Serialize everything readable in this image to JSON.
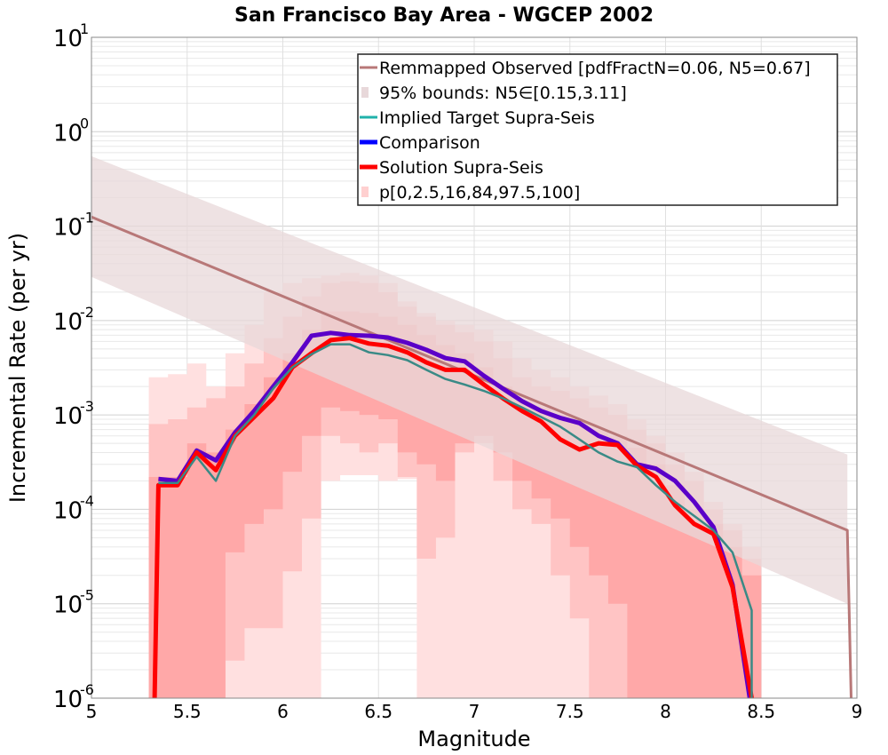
{
  "chart_data": {
    "type": "line",
    "title": "San Francisco Bay Area - WGCEP 2002",
    "xlabel": "Magnitude",
    "ylabel": "Incremental Rate (per yr)",
    "xlim": [
      5,
      9
    ],
    "ylim": [
      1e-06,
      10
    ],
    "yscale": "log",
    "grid": true,
    "legend_position": "top-right",
    "x_ticks": [
      "5",
      "5.5",
      "6",
      "6.5",
      "7",
      "7.5",
      "8",
      "8.5",
      "9"
    ],
    "y_ticks": [
      {
        "base": "10",
        "exp": "-6"
      },
      {
        "base": "10",
        "exp": "-5"
      },
      {
        "base": "10",
        "exp": "-4"
      },
      {
        "base": "10",
        "exp": "-3"
      },
      {
        "base": "10",
        "exp": "-2"
      },
      {
        "base": "10",
        "exp": "-1"
      },
      {
        "base": "10",
        "exp": "0"
      },
      {
        "base": "10",
        "exp": "1"
      }
    ],
    "legend": [
      {
        "label": "Remmapped Observed [pdfFractN=0.06, N5=0.67]",
        "color": "#b87878",
        "style": "line"
      },
      {
        "label": "95% bounds: N5∈[0.15,3.11]",
        "color": "#e8d8da",
        "style": "box"
      },
      {
        "label": "Implied Target Supra-Seis",
        "color": "#20b2aa",
        "style": "line"
      },
      {
        "label": "Comparison",
        "color": "#0000ff",
        "style": "thick"
      },
      {
        "label": "Solution Supra-Seis",
        "color": "#ff0000",
        "style": "thick"
      },
      {
        "label": "p[0,2.5,16,84,97.5,100]",
        "color": "#ffd0d0",
        "style": "box"
      }
    ],
    "observed": {
      "x": [
        5.0,
        8.95,
        8.97
      ],
      "y": [
        0.125,
        6e-05,
        1e-06
      ],
      "color": "#b87878"
    },
    "observed_bounds": {
      "x": [
        5.0,
        8.95
      ],
      "upper": [
        0.55,
        0.00038
      ],
      "lower": [
        0.029,
        1e-05
      ],
      "color": "#e8d8da"
    },
    "percentile_bands": {
      "x": [
        5.35,
        5.45,
        5.55,
        5.65,
        5.75,
        5.85,
        5.95,
        6.05,
        6.15,
        6.25,
        6.35,
        6.45,
        6.55,
        6.65,
        6.75,
        6.85,
        6.95,
        7.05,
        7.15,
        7.25,
        7.35,
        7.45,
        7.55,
        7.65,
        7.75,
        7.85,
        7.95,
        8.05,
        8.15,
        8.25,
        8.35,
        8.45
      ],
      "p0": [
        1e-06,
        1e-06,
        1e-06,
        1e-06,
        1e-06,
        1e-06,
        1e-06,
        1e-06,
        1e-06,
        0.0002,
        0.00023,
        0.00023,
        0.0002,
        0.00021,
        1e-06,
        1e-06,
        1e-06,
        1e-06,
        1e-06,
        1e-06,
        1e-06,
        1e-06,
        1e-06,
        1e-06,
        1e-06,
        1e-06,
        1e-06,
        1e-06,
        1e-06,
        1e-06,
        1e-06,
        1e-06
      ],
      "p2_5": [
        1e-06,
        1e-06,
        1e-06,
        1e-06,
        2.5e-06,
        5.5e-06,
        5.5e-06,
        2.2e-05,
        8e-05,
        0.0006,
        0.0005,
        0.0004,
        0.0005,
        0.00022,
        3e-05,
        5e-05,
        0.0004,
        0.0005,
        0.0002,
        0.0001,
        7e-05,
        2e-05,
        7e-06,
        1e-06,
        1e-06,
        1e-06,
        1e-06,
        1e-06,
        1e-06,
        1e-06,
        1e-06,
        1e-06
      ],
      "p16": [
        1e-06,
        1e-06,
        1e-06,
        1e-06,
        3.5e-05,
        7e-05,
        0.0001,
        0.00025,
        0.0006,
        0.0012,
        0.0011,
        0.001,
        0.0009,
        0.0004,
        0.0003,
        0.0002,
        0.0005,
        0.0006,
        0.0004,
        0.0002,
        0.00013,
        8e-05,
        4e-05,
        2e-05,
        1e-05,
        1e-06,
        1e-06,
        1e-06,
        1e-06,
        1e-06,
        1e-06,
        1e-06
      ],
      "p84": [
        0.00022,
        0.00022,
        0.0005,
        0.0004,
        0.0007,
        0.0013,
        0.0025,
        0.0045,
        0.008,
        0.0125,
        0.0125,
        0.012,
        0.011,
        0.009,
        0.007,
        0.0055,
        0.0045,
        0.0032,
        0.002,
        0.0014,
        0.0012,
        0.001,
        0.00085,
        0.0007,
        0.0006,
        0.00045,
        0.0003,
        0.00018,
        0.0001,
        7e-05,
        4e-05,
        2e-05
      ],
      "p97_5": [
        0.0008,
        0.0009,
        0.0012,
        0.0015,
        0.002,
        0.0035,
        0.0065,
        0.011,
        0.018,
        0.025,
        0.026,
        0.025,
        0.02,
        0.014,
        0.011,
        0.009,
        0.0075,
        0.006,
        0.004,
        0.0025,
        0.002,
        0.0018,
        0.0015,
        0.0012,
        0.001,
        0.0007,
        0.0005,
        0.0003,
        0.0002,
        0.0001,
        6e-05,
        3e-05
      ],
      "p100": [
        0.0025,
        0.0027,
        0.0035,
        0.002,
        0.0045,
        0.009,
        0.02,
        0.025,
        0.028,
        0.03,
        0.032,
        0.03,
        0.025,
        0.016,
        0.012,
        0.01,
        0.009,
        0.008,
        0.006,
        0.004,
        0.003,
        0.0025,
        0.002,
        0.0016,
        0.0013,
        0.0009,
        0.0006,
        0.0004,
        0.00025,
        0.00012,
        7e-05,
        4e-05
      ],
      "colors": [
        "#ffe0e0",
        "#ffc4c4",
        "#ffa8a8"
      ]
    },
    "series": [
      {
        "name": "Implied Target Supra-Seis",
        "color": "#20b2aa",
        "stroke": 2.5,
        "x": [
          5.35,
          5.45,
          5.55,
          5.65,
          5.75,
          5.85,
          5.95,
          6.05,
          6.15,
          6.25,
          6.35,
          6.45,
          6.55,
          6.65,
          6.75,
          6.85,
          6.95,
          7.05,
          7.15,
          7.25,
          7.35,
          7.45,
          7.55,
          7.65,
          7.75,
          7.85,
          7.95,
          8.05,
          8.15,
          8.25,
          8.35,
          8.45,
          8.45
        ],
        "y": [
          0.00019,
          0.00019,
          0.00036,
          0.0002,
          0.0006,
          0.001,
          0.0019,
          0.0032,
          0.0044,
          0.0056,
          0.0056,
          0.0046,
          0.0043,
          0.0038,
          0.003,
          0.0024,
          0.0021,
          0.0018,
          0.0015,
          0.0012,
          0.00095,
          0.00075,
          0.00055,
          0.0004,
          0.00032,
          0.00028,
          0.00018,
          0.00012,
          8.5e-05,
          6e-05,
          3.5e-05,
          8.5e-06,
          1e-06
        ]
      },
      {
        "name": "Comparison",
        "color": "#0000ff",
        "stroke": 5,
        "x": [
          5.35,
          5.45,
          5.55,
          5.65,
          5.75,
          5.85,
          5.95,
          6.05,
          6.15,
          6.25,
          6.35,
          6.45,
          6.55,
          6.65,
          6.75,
          6.85,
          6.95,
          7.05,
          7.15,
          7.25,
          7.35,
          7.45,
          7.55,
          7.65,
          7.75,
          7.85,
          7.95,
          8.05,
          8.15,
          8.25,
          8.35,
          8.44
        ],
        "y": [
          0.00021,
          0.0002,
          0.00042,
          0.00033,
          0.00065,
          0.0011,
          0.002,
          0.0036,
          0.0069,
          0.0074,
          0.007,
          0.0069,
          0.0066,
          0.0058,
          0.0049,
          0.004,
          0.0037,
          0.0026,
          0.0019,
          0.0014,
          0.0011,
          0.00093,
          0.00082,
          0.0006,
          0.0005,
          0.0003,
          0.00027,
          0.0002,
          0.00012,
          6.5e-05,
          1.6e-05,
          1e-06
        ]
      },
      {
        "name": "Solution Supra-Seis",
        "color": "#ff0000",
        "stroke": 5,
        "x": [
          5.33,
          5.35,
          5.45,
          5.55,
          5.65,
          5.75,
          5.85,
          5.95,
          6.05,
          6.15,
          6.25,
          6.35,
          6.45,
          6.55,
          6.65,
          6.75,
          6.85,
          6.95,
          7.05,
          7.15,
          7.25,
          7.35,
          7.45,
          7.55,
          7.65,
          7.75,
          7.85,
          7.95,
          8.05,
          8.15,
          8.25,
          8.35,
          8.45
        ],
        "y": [
          1e-06,
          0.00018,
          0.00018,
          0.0004,
          0.00026,
          0.0006,
          0.00095,
          0.0015,
          0.0032,
          0.0045,
          0.0062,
          0.0065,
          0.0057,
          0.0054,
          0.0046,
          0.0036,
          0.003,
          0.003,
          0.0021,
          0.0015,
          0.0011,
          0.00085,
          0.00055,
          0.00043,
          0.0005,
          0.00048,
          0.00029,
          0.00022,
          0.00011,
          7e-05,
          5.5e-05,
          1.5e-05,
          1e-06
        ]
      }
    ]
  }
}
